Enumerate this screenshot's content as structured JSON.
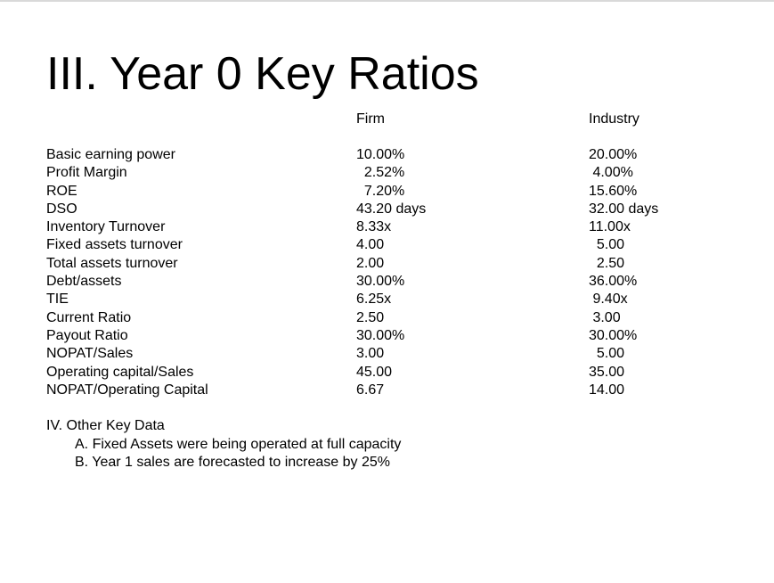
{
  "slide": {
    "title": "III. Year 0 Key Ratios"
  },
  "columns": {
    "firm": "Firm",
    "industry": "Industry"
  },
  "ratios": [
    {
      "name": "Basic earning power",
      "firm": "10.00%",
      "industry": "20.00%"
    },
    {
      "name": "Profit Margin",
      "firm": "  2.52%",
      "industry": " 4.00%"
    },
    {
      "name": "ROE",
      "firm": "  7.20%",
      "industry": "15.60%"
    },
    {
      "name": "DSO",
      "firm": "43.20 days",
      "industry": "32.00 days"
    },
    {
      "name": "Inventory Turnover",
      "firm": "8.33x",
      "industry": "11.00x"
    },
    {
      "name": "Fixed assets turnover",
      "firm": "4.00",
      "industry": "  5.00"
    },
    {
      "name": "Total assets turnover",
      "firm": "2.00",
      "industry": "  2.50"
    },
    {
      "name": "Debt/assets",
      "firm": "30.00%",
      "industry": "36.00%"
    },
    {
      "name": "TIE",
      "firm": "6.25x",
      "industry": " 9.40x"
    },
    {
      "name": "Current Ratio",
      "firm": "2.50",
      "industry": " 3.00"
    },
    {
      "name": "Payout Ratio",
      "firm": "30.00%",
      "industry": "30.00%"
    },
    {
      "name": "NOPAT/Sales",
      "firm": "3.00",
      "industry": "  5.00"
    },
    {
      "name": "Operating capital/Sales",
      "firm": "45.00",
      "industry": "35.00"
    },
    {
      "name": "NOPAT/Operating Capital",
      "firm": "6.67",
      "industry": "14.00"
    }
  ],
  "other": {
    "heading": "IV. Other Key Data",
    "items": [
      "A. Fixed Assets were being operated at full capacity",
      "B. Year 1 sales are forecasted to increase by 25%"
    ]
  }
}
